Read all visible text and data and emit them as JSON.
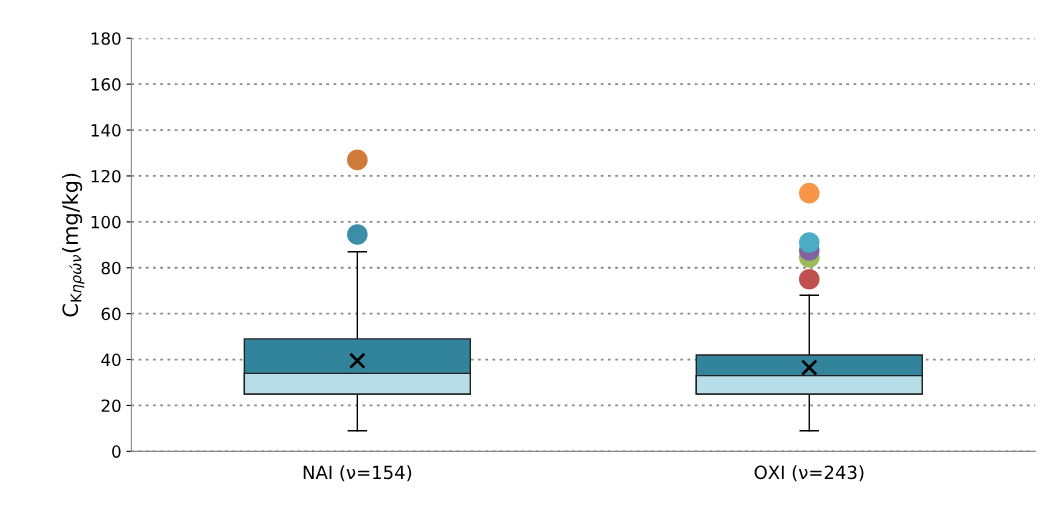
{
  "chart_data": {
    "type": "box",
    "ylabel": "C$_{Κηρών}$(mg/kg)",
    "categories": [
      "ΝΑΙ (ν=154)",
      "ΟΧΙ (ν=243)"
    ],
    "boxes": [
      {
        "low": 9,
        "q1": 25,
        "median": 34,
        "q3": 49,
        "high": 87,
        "mean": 39.5
      },
      {
        "low": 9,
        "q1": 25,
        "median": 33,
        "q3": 42,
        "high": 68,
        "mean": 36.5
      }
    ],
    "color": "#b6dde8",
    "colors": [
      "#31849b",
      "#31849b"
    ],
    "series": [
      {
        "type": "scatter",
        "x": [
          "ΝΑΙ (ν=154)",
          "ΝΑΙ (ν=154)"
        ],
        "values": [
          127,
          94.5
        ],
        "colors": [
          "#d07b3a",
          "#3c8ea8"
        ]
      },
      {
        "type": "scatter",
        "x": [
          "ΟΧΙ (ν=243)",
          "ΟΧΙ (ν=243)",
          "ΟΧΙ (ν=243)",
          "ΟΧΙ (ν=243)",
          "ΟΧΙ (ν=243)"
        ],
        "values": [
          112.5,
          84.5,
          87.5,
          91,
          75
        ],
        "colors": [
          "#f79646",
          "#9bbb59",
          "#8064a2",
          "#4bacc6",
          "#c0504d"
        ]
      }
    ],
    "ylim": [
      0,
      180
    ],
    "yticks": [
      0,
      20,
      40,
      60,
      80,
      100,
      120,
      140,
      160,
      180
    ],
    "grid": "y",
    "marker": "circle"
  }
}
